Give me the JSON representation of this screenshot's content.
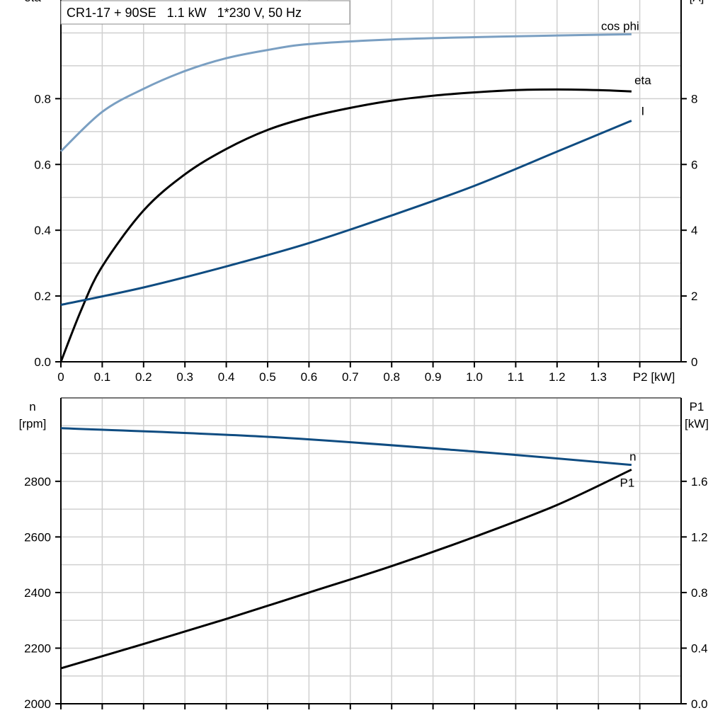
{
  "title": "CR1-17 + 90SE   1.1 kW   1*230 V, 50 Hz",
  "chart_data": [
    {
      "type": "line",
      "xlabel": "P2 [kW]",
      "ylabel_left": [
        "cos phi",
        "eta"
      ],
      "ylabel_right": [
        "I",
        "[A]"
      ],
      "xlim": [
        0,
        1.5
      ],
      "ylim_left": [
        0,
        1.1
      ],
      "ylim_right": [
        0,
        11
      ],
      "x_ticks": [
        "0",
        "0.1",
        "0.2",
        "0.3",
        "0.4",
        "0.5",
        "0.6",
        "0.7",
        "0.8",
        "0.9",
        "1.0",
        "1.1",
        "1.2",
        "1.3"
      ],
      "y_ticks_left": [
        "0.0",
        "0.2",
        "0.4",
        "0.6",
        "0.8"
      ],
      "y_ticks_right": [
        "0",
        "2",
        "4",
        "6",
        "8"
      ],
      "grid": true,
      "series": [
        {
          "name": "cos phi",
          "axis": "left",
          "color": "#7a9fc2",
          "x": [
            0,
            0.1,
            0.2,
            0.3,
            0.4,
            0.5,
            0.6,
            0.8,
            1.0,
            1.2,
            1.38
          ],
          "y": [
            0.64,
            0.76,
            0.83,
            0.884,
            0.923,
            0.948,
            0.966,
            0.98,
            0.987,
            0.992,
            0.996
          ]
        },
        {
          "name": "eta",
          "axis": "left",
          "color": "#000000",
          "x": [
            0,
            0.05,
            0.1,
            0.2,
            0.3,
            0.4,
            0.5,
            0.6,
            0.7,
            0.8,
            0.9,
            1.0,
            1.1,
            1.2,
            1.3,
            1.38
          ],
          "y": [
            0,
            0.16,
            0.29,
            0.46,
            0.57,
            0.647,
            0.705,
            0.744,
            0.772,
            0.794,
            0.809,
            0.819,
            0.826,
            0.828,
            0.826,
            0.822
          ]
        },
        {
          "name": "I",
          "axis": "right",
          "color": "#0f4c81",
          "x": [
            0,
            0.2,
            0.4,
            0.6,
            0.8,
            1.0,
            1.2,
            1.38
          ],
          "y": [
            1.73,
            2.26,
            2.9,
            3.61,
            4.45,
            5.35,
            6.39,
            7.33
          ]
        }
      ]
    },
    {
      "type": "line",
      "ylabel_left": [
        "n",
        "[rpm]"
      ],
      "ylabel_right": [
        "P1",
        "[kW]"
      ],
      "xlim": [
        0,
        1.5
      ],
      "ylim_left": [
        2000,
        3100
      ],
      "ylim_right": [
        0,
        2.2
      ],
      "y_ticks_left": [
        "2000",
        "2200",
        "2400",
        "2600",
        "2800"
      ],
      "y_ticks_right": [
        "0.0",
        "0.4",
        "0.8",
        "1.2",
        "1.6"
      ],
      "grid": true,
      "series": [
        {
          "name": "n",
          "axis": "left",
          "color": "#0f4c81",
          "x": [
            0,
            0.5,
            1.0,
            1.38
          ],
          "y": [
            2991,
            2960,
            2907,
            2859
          ]
        },
        {
          "name": "P1",
          "axis": "right",
          "color": "#000000",
          "x": [
            0,
            0.2,
            0.4,
            0.6,
            0.8,
            1.0,
            1.2,
            1.38
          ],
          "y": [
            0.255,
            0.43,
            0.61,
            0.8,
            0.99,
            1.2,
            1.43,
            1.684
          ]
        }
      ]
    }
  ]
}
